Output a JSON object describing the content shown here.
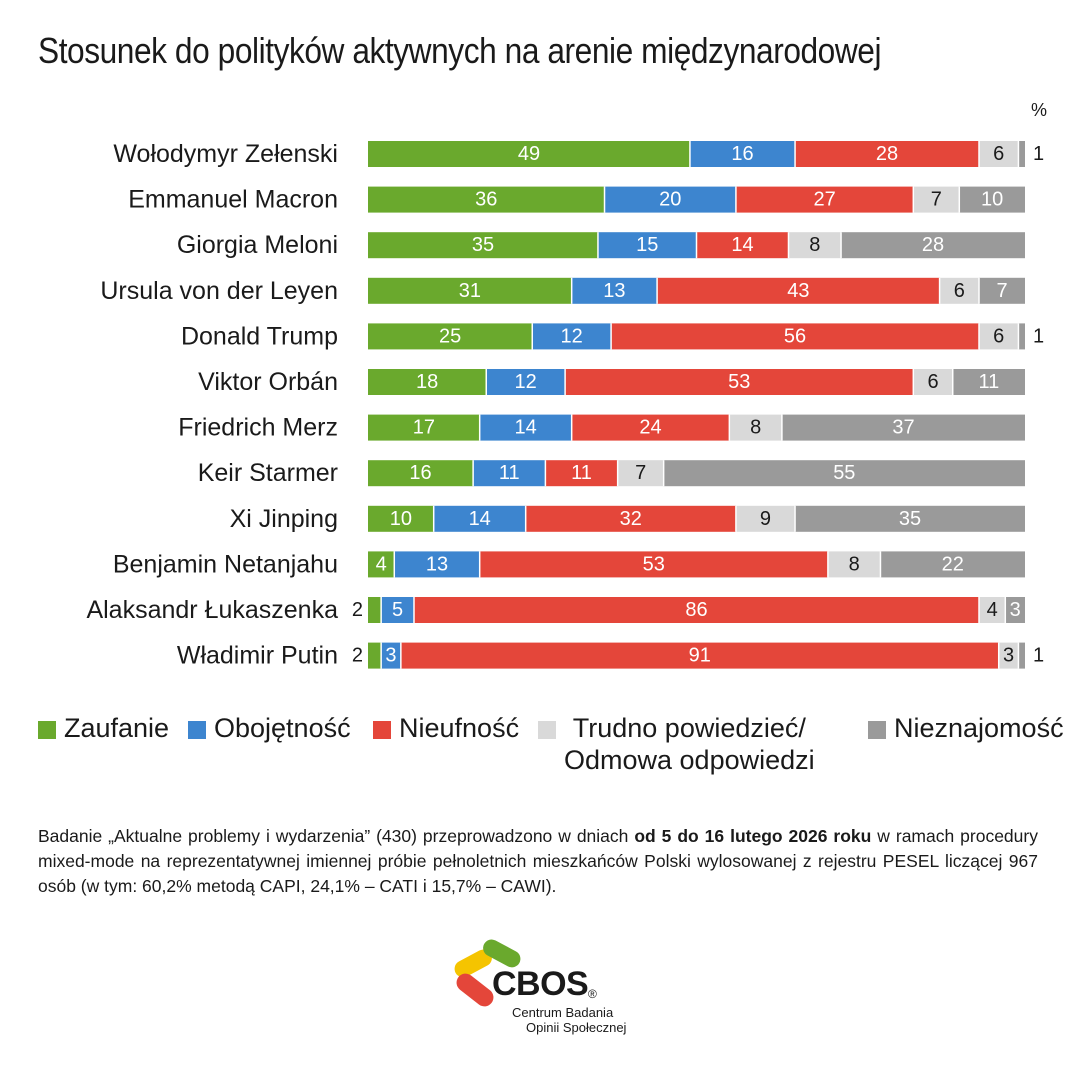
{
  "title": "Stosunek do polityków aktywnych na arenie międzynarodowej",
  "unit": "%",
  "chart_data": {
    "type": "bar",
    "orientation": "horizontal",
    "stacked": true,
    "title": "Stosunek do polityków aktywnych na arenie międzynarodowej",
    "unit": "%",
    "xlim": [
      0,
      100
    ],
    "grid": false,
    "legend_position": "bottom",
    "categories": [
      "Wołodymyr Zełenski",
      "Emmanuel Macron",
      "Giorgia Meloni",
      "Ursula von der Leyen",
      "Donald Trump",
      "Viktor Orbán",
      "Friedrich Merz",
      "Keir Starmer",
      "Xi Jinping",
      "Benjamin Netanjahu",
      "Alaksandr Łukaszenka",
      "Władimir Putin"
    ],
    "series": [
      {
        "name": "Zaufanie",
        "color": "#6aa92d",
        "values": [
          49,
          36,
          35,
          31,
          25,
          18,
          17,
          16,
          10,
          4,
          2,
          2
        ]
      },
      {
        "name": "Obojętność",
        "color": "#3d85cf",
        "values": [
          16,
          20,
          15,
          13,
          12,
          12,
          14,
          11,
          14,
          13,
          5,
          3
        ]
      },
      {
        "name": "Nieufność",
        "color": "#e4463a",
        "values": [
          28,
          27,
          14,
          43,
          56,
          53,
          24,
          11,
          32,
          53,
          86,
          91
        ]
      },
      {
        "name": "Trudno powiedzieć/ Odmowa odpowiedzi",
        "color": "#d9d9d9",
        "values": [
          6,
          7,
          8,
          6,
          6,
          6,
          8,
          7,
          9,
          8,
          4,
          3
        ]
      },
      {
        "name": "Nieznajomość",
        "color": "#9a9a9a",
        "values": [
          1,
          10,
          28,
          7,
          1,
          11,
          37,
          55,
          35,
          22,
          3,
          1
        ]
      }
    ]
  },
  "legend": [
    {
      "label": "Zaufanie",
      "color": "#6aa92d"
    },
    {
      "label": "Obojętność",
      "color": "#3d85cf"
    },
    {
      "label": "Nieufność",
      "color": "#e4463a"
    },
    {
      "label": "Trudno powiedzieć/\nOdmowa odpowiedzi",
      "color": "#d9d9d9"
    },
    {
      "label": "Nieznajomość",
      "color": "#9a9a9a"
    }
  ],
  "note": {
    "part1": "Badanie „Aktualne problemy i wydarzenia” (430) przeprowadzono w dniach ",
    "bold": "od 5 do 16 lutego 2026 roku",
    "part2": " w ramach procedury mixed-mode na reprezentatywnej imiennej próbie pełnoletnich mieszkańców Polski wylosowanej z rejestru PESEL liczącej 967 osób (w tym: 60,2% metodą CAPI, 24,1% – CATI i 15,7% – CAWI)."
  },
  "logo": {
    "name": "CBOS",
    "reg": "®",
    "line1": "Centrum Badania",
    "line2": "Opinii Społecznej",
    "colors": [
      "#f5c400",
      "#6aa92d",
      "#e4463a"
    ]
  }
}
